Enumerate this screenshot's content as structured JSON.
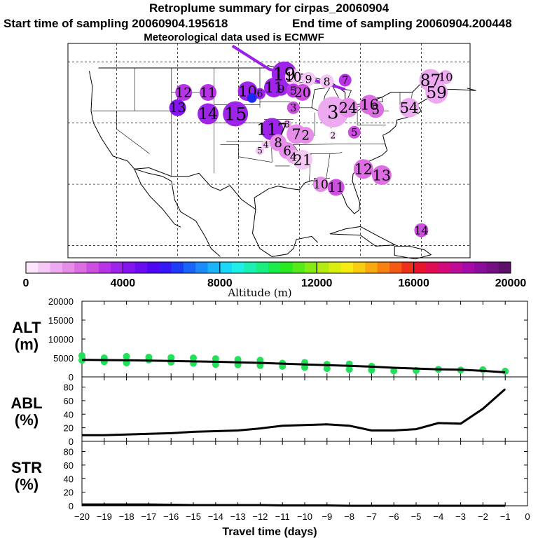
{
  "header": {
    "title": "Retroplume summary for cirpas_20060904",
    "start_label": "Start time of sampling 20060904.195618",
    "end_label": "End time of sampling 20060904.200448",
    "met_label": "Meteorological data used is ECMWF"
  },
  "colorbar": {
    "ticks": [
      "0",
      "4000",
      "8000",
      "12000",
      "16000",
      "20000"
    ],
    "tick_values": [
      0,
      4000,
      8000,
      12000,
      16000,
      20000
    ],
    "label": "Altitude (m)",
    "colors": [
      "#fce6fc",
      "#f5c8f5",
      "#eeaaf0",
      "#e68ce9",
      "#dc6de3",
      "#cc4fe0",
      "#b735e6",
      "#9f24ea",
      "#8515ee",
      "#6a0cf0",
      "#4f06f2",
      "#3518f5",
      "#1e3cf7",
      "#1a64f9",
      "#1a8cfb",
      "#1ab4fb",
      "#1ad8f8",
      "#1ef0e8",
      "#1af0b4",
      "#1aee80",
      "#1aec4c",
      "#28ea1e",
      "#56ea18",
      "#86ea14",
      "#b4ec12",
      "#daee10",
      "#f6ea10",
      "#f8cc10",
      "#f8a810",
      "#f88210",
      "#f45a14",
      "#ee321a",
      "#e8142c",
      "#e00c54",
      "#d20a7a",
      "#c00a98",
      "#a60aa8",
      "#8c0c9c",
      "#741084",
      "#5e1068"
    ]
  },
  "map": {
    "track_color": "#9b1fe8",
    "points": [
      {
        "label": "19",
        "lon": -92.5,
        "lat": 48.0,
        "alt": 3900,
        "size": 18
      },
      {
        "label": "10",
        "lon": -91.0,
        "lat": 47.5,
        "alt": 700,
        "size": 12
      },
      {
        "label": "9",
        "lon": -88.5,
        "lat": 47.2,
        "alt": 700,
        "size": 10
      },
      {
        "label": "8",
        "lon": -85.5,
        "lat": 46.8,
        "alt": 700,
        "size": 10
      },
      {
        "label": "7",
        "lon": -82.5,
        "lat": 47.0,
        "alt": 3000,
        "size": 9
      },
      {
        "label": "12",
        "lon": -109.0,
        "lat": 45.0,
        "alt": 3300,
        "size": 12
      },
      {
        "label": "11",
        "lon": -105.0,
        "lat": 45.0,
        "alt": 3100,
        "size": 12
      },
      {
        "label": "10",
        "lon": -98.5,
        "lat": 45.2,
        "alt": 3500,
        "size": 14
      },
      {
        "label": "6",
        "lon": -96.5,
        "lat": 44.8,
        "alt": 3800,
        "size": 8
      },
      {
        "label": "11",
        "lon": -94.2,
        "lat": 45.8,
        "alt": 3800,
        "size": 14
      },
      {
        "label": "9",
        "lon": -93.0,
        "lat": 45.6,
        "alt": 3700,
        "size": 10
      },
      {
        "label": "5",
        "lon": -91.0,
        "lat": 45.3,
        "alt": 3000,
        "size": 10
      },
      {
        "label": "20",
        "lon": -89.5,
        "lat": 45.0,
        "alt": 2900,
        "size": 12
      },
      {
        "label": "13",
        "lon": -110.0,
        "lat": 42.5,
        "alt": 4000,
        "size": 12
      },
      {
        "label": "14",
        "lon": -105.0,
        "lat": 41.5,
        "alt": 3600,
        "size": 15
      },
      {
        "label": "15",
        "lon": -100.5,
        "lat": 41.5,
        "alt": 3600,
        "size": 18
      },
      {
        "label": "3",
        "lon": -91.0,
        "lat": 42.5,
        "alt": 2600,
        "size": 9
      },
      {
        "label": "3",
        "lon": -84.5,
        "lat": 41.8,
        "alt": 1200,
        "size": 22
      },
      {
        "label": "24",
        "lon": -82.0,
        "lat": 42.5,
        "alt": 1900,
        "size": 14
      },
      {
        "label": "16",
        "lon": -78.5,
        "lat": 43.0,
        "alt": 2400,
        "size": 14
      },
      {
        "label": "5",
        "lon": -77.5,
        "lat": 42.2,
        "alt": 2200,
        "size": 12
      },
      {
        "label": "54",
        "lon": -72.0,
        "lat": 42.5,
        "alt": 1200,
        "size": 14
      },
      {
        "label": "87",
        "lon": -68.5,
        "lat": 47.0,
        "alt": 1000,
        "size": 16
      },
      {
        "label": "10",
        "lon": -66.0,
        "lat": 47.5,
        "alt": 1200,
        "size": 10
      },
      {
        "label": "59",
        "lon": -67.5,
        "lat": 45.0,
        "alt": 1100,
        "size": 16
      },
      {
        "label": "117",
        "lon": -94.5,
        "lat": 39.0,
        "alt": 3700,
        "size": 16
      },
      {
        "label": "3",
        "lon": -92.0,
        "lat": 39.8,
        "alt": 1400,
        "size": 6
      },
      {
        "label": "4",
        "lon": -95.5,
        "lat": 36.5,
        "alt": 600,
        "size": 6
      },
      {
        "label": "5",
        "lon": -96.5,
        "lat": 35.5,
        "alt": 600,
        "size": 6
      },
      {
        "label": "8",
        "lon": -93.5,
        "lat": 36.8,
        "alt": 1600,
        "size": 12
      },
      {
        "label": "7",
        "lon": -90.5,
        "lat": 38.2,
        "alt": 1800,
        "size": 14
      },
      {
        "label": "2",
        "lon": -89.0,
        "lat": 38.0,
        "alt": 1600,
        "size": 12
      },
      {
        "label": "6",
        "lon": -92.0,
        "lat": 35.5,
        "alt": 1500,
        "size": 12
      },
      {
        "label": "4",
        "lon": -91.0,
        "lat": 34.5,
        "alt": 1000,
        "size": 10
      },
      {
        "label": "21",
        "lon": -89.5,
        "lat": 34.0,
        "alt": 900,
        "size": 14
      },
      {
        "label": "2",
        "lon": -84.5,
        "lat": 38.0,
        "alt": 400,
        "size": 6
      },
      {
        "label": "5",
        "lon": -81.0,
        "lat": 38.5,
        "alt": 2600,
        "size": 9
      },
      {
        "label": "12",
        "lon": -79.5,
        "lat": 32.5,
        "alt": 2000,
        "size": 14
      },
      {
        "label": "13",
        "lon": -76.5,
        "lat": 31.5,
        "alt": 2400,
        "size": 14
      },
      {
        "label": "10",
        "lon": -86.5,
        "lat": 30.0,
        "alt": 1600,
        "size": 11
      },
      {
        "label": "11",
        "lon": -84.0,
        "lat": 29.5,
        "alt": 2700,
        "size": 12
      },
      {
        "label": "14",
        "lon": -70.0,
        "lat": 22.5,
        "alt": 2600,
        "size": 10
      }
    ]
  },
  "chart_data": [
    {
      "type": "scatter",
      "name": "ALT",
      "ylabel": "ALT\n(m)",
      "ylabel_lines": [
        "ALT",
        "(m)"
      ],
      "yticks": [
        "0",
        "5000",
        "10000",
        "15000",
        "20000"
      ],
      "ylim": [
        0,
        20000
      ],
      "xlim": [
        -20,
        0
      ],
      "median_line": {
        "x": [
          -20,
          -19,
          -18,
          -17,
          -16,
          -15,
          -14,
          -13,
          -12,
          -11,
          -10,
          -9,
          -8,
          -7,
          -6,
          -5,
          -4,
          -3,
          -2,
          -1
        ],
        "y": [
          4500,
          4450,
          4400,
          4300,
          4200,
          4100,
          4000,
          3850,
          3700,
          3500,
          3300,
          3100,
          2900,
          2700,
          2400,
          2200,
          2000,
          1900,
          1600,
          1200
        ]
      },
      "scatter_series": {
        "x": [
          -20,
          -20,
          -19,
          -19,
          -18,
          -18,
          -17,
          -17,
          -16,
          -16,
          -15,
          -15,
          -14,
          -14,
          -13,
          -13,
          -12,
          -12,
          -11,
          -11,
          -10,
          -10,
          -9,
          -9,
          -8,
          -8,
          -7,
          -7,
          -6,
          -5,
          -4,
          -3,
          -2,
          -1
        ],
        "y": [
          4400,
          5600,
          4000,
          5000,
          3700,
          5400,
          4500,
          5200,
          3900,
          5100,
          3600,
          5000,
          3300,
          4800,
          3200,
          4600,
          3000,
          4400,
          2800,
          3600,
          2500,
          3800,
          2200,
          3300,
          2000,
          3400,
          1800,
          2800,
          1600,
          1700,
          2000,
          1800,
          1900,
          1500
        ]
      }
    },
    {
      "type": "line",
      "name": "ABL",
      "ylabel": "ABL\n(%)",
      "ylabel_lines": [
        "ABL",
        "(%)"
      ],
      "yticks": [
        "0",
        "20",
        "40",
        "60",
        "80"
      ],
      "ylim": [
        0,
        95
      ],
      "xlim": [
        -20,
        0
      ],
      "x": [
        -20,
        -19,
        -18,
        -17,
        -16,
        -15,
        -14,
        -13,
        -12,
        -11,
        -10,
        -9,
        -8,
        -7,
        -6,
        -5,
        -4,
        -3,
        -2,
        -1
      ],
      "y": [
        9,
        9,
        10,
        11,
        12,
        14,
        15,
        16,
        19,
        23,
        24,
        25,
        23,
        16,
        16,
        18,
        27,
        26,
        48,
        77
      ]
    },
    {
      "type": "line",
      "name": "STR",
      "ylabel": "STR\n(%)",
      "ylabel_lines": [
        "STR",
        "(%)"
      ],
      "yticks": [
        "0",
        "20",
        "40",
        "60",
        "80"
      ],
      "ylim": [
        0,
        95
      ],
      "xlim": [
        -20,
        0
      ],
      "x": [
        -20,
        -19,
        -18,
        -17,
        -16,
        -15,
        -14,
        -13,
        -12,
        -11,
        -10,
        -9,
        -8,
        -7,
        -6,
        -5,
        -4,
        -3,
        -2,
        -1
      ],
      "y": [
        2,
        2,
        2,
        2,
        1.5,
        1,
        1,
        1,
        1,
        0.5,
        0.5,
        0.5,
        0,
        0,
        0,
        0,
        0,
        0,
        0,
        0
      ],
      "xticks": [
        "−20",
        "−19",
        "−18",
        "−17",
        "−16",
        "−15",
        "−14",
        "−13",
        "−12",
        "−11",
        "−10",
        "−9",
        "−8",
        "−7",
        "−6",
        "−5",
        "−4",
        "−3",
        "−2",
        "−1",
        "0"
      ],
      "xlabel": "Travel time (days)"
    }
  ]
}
